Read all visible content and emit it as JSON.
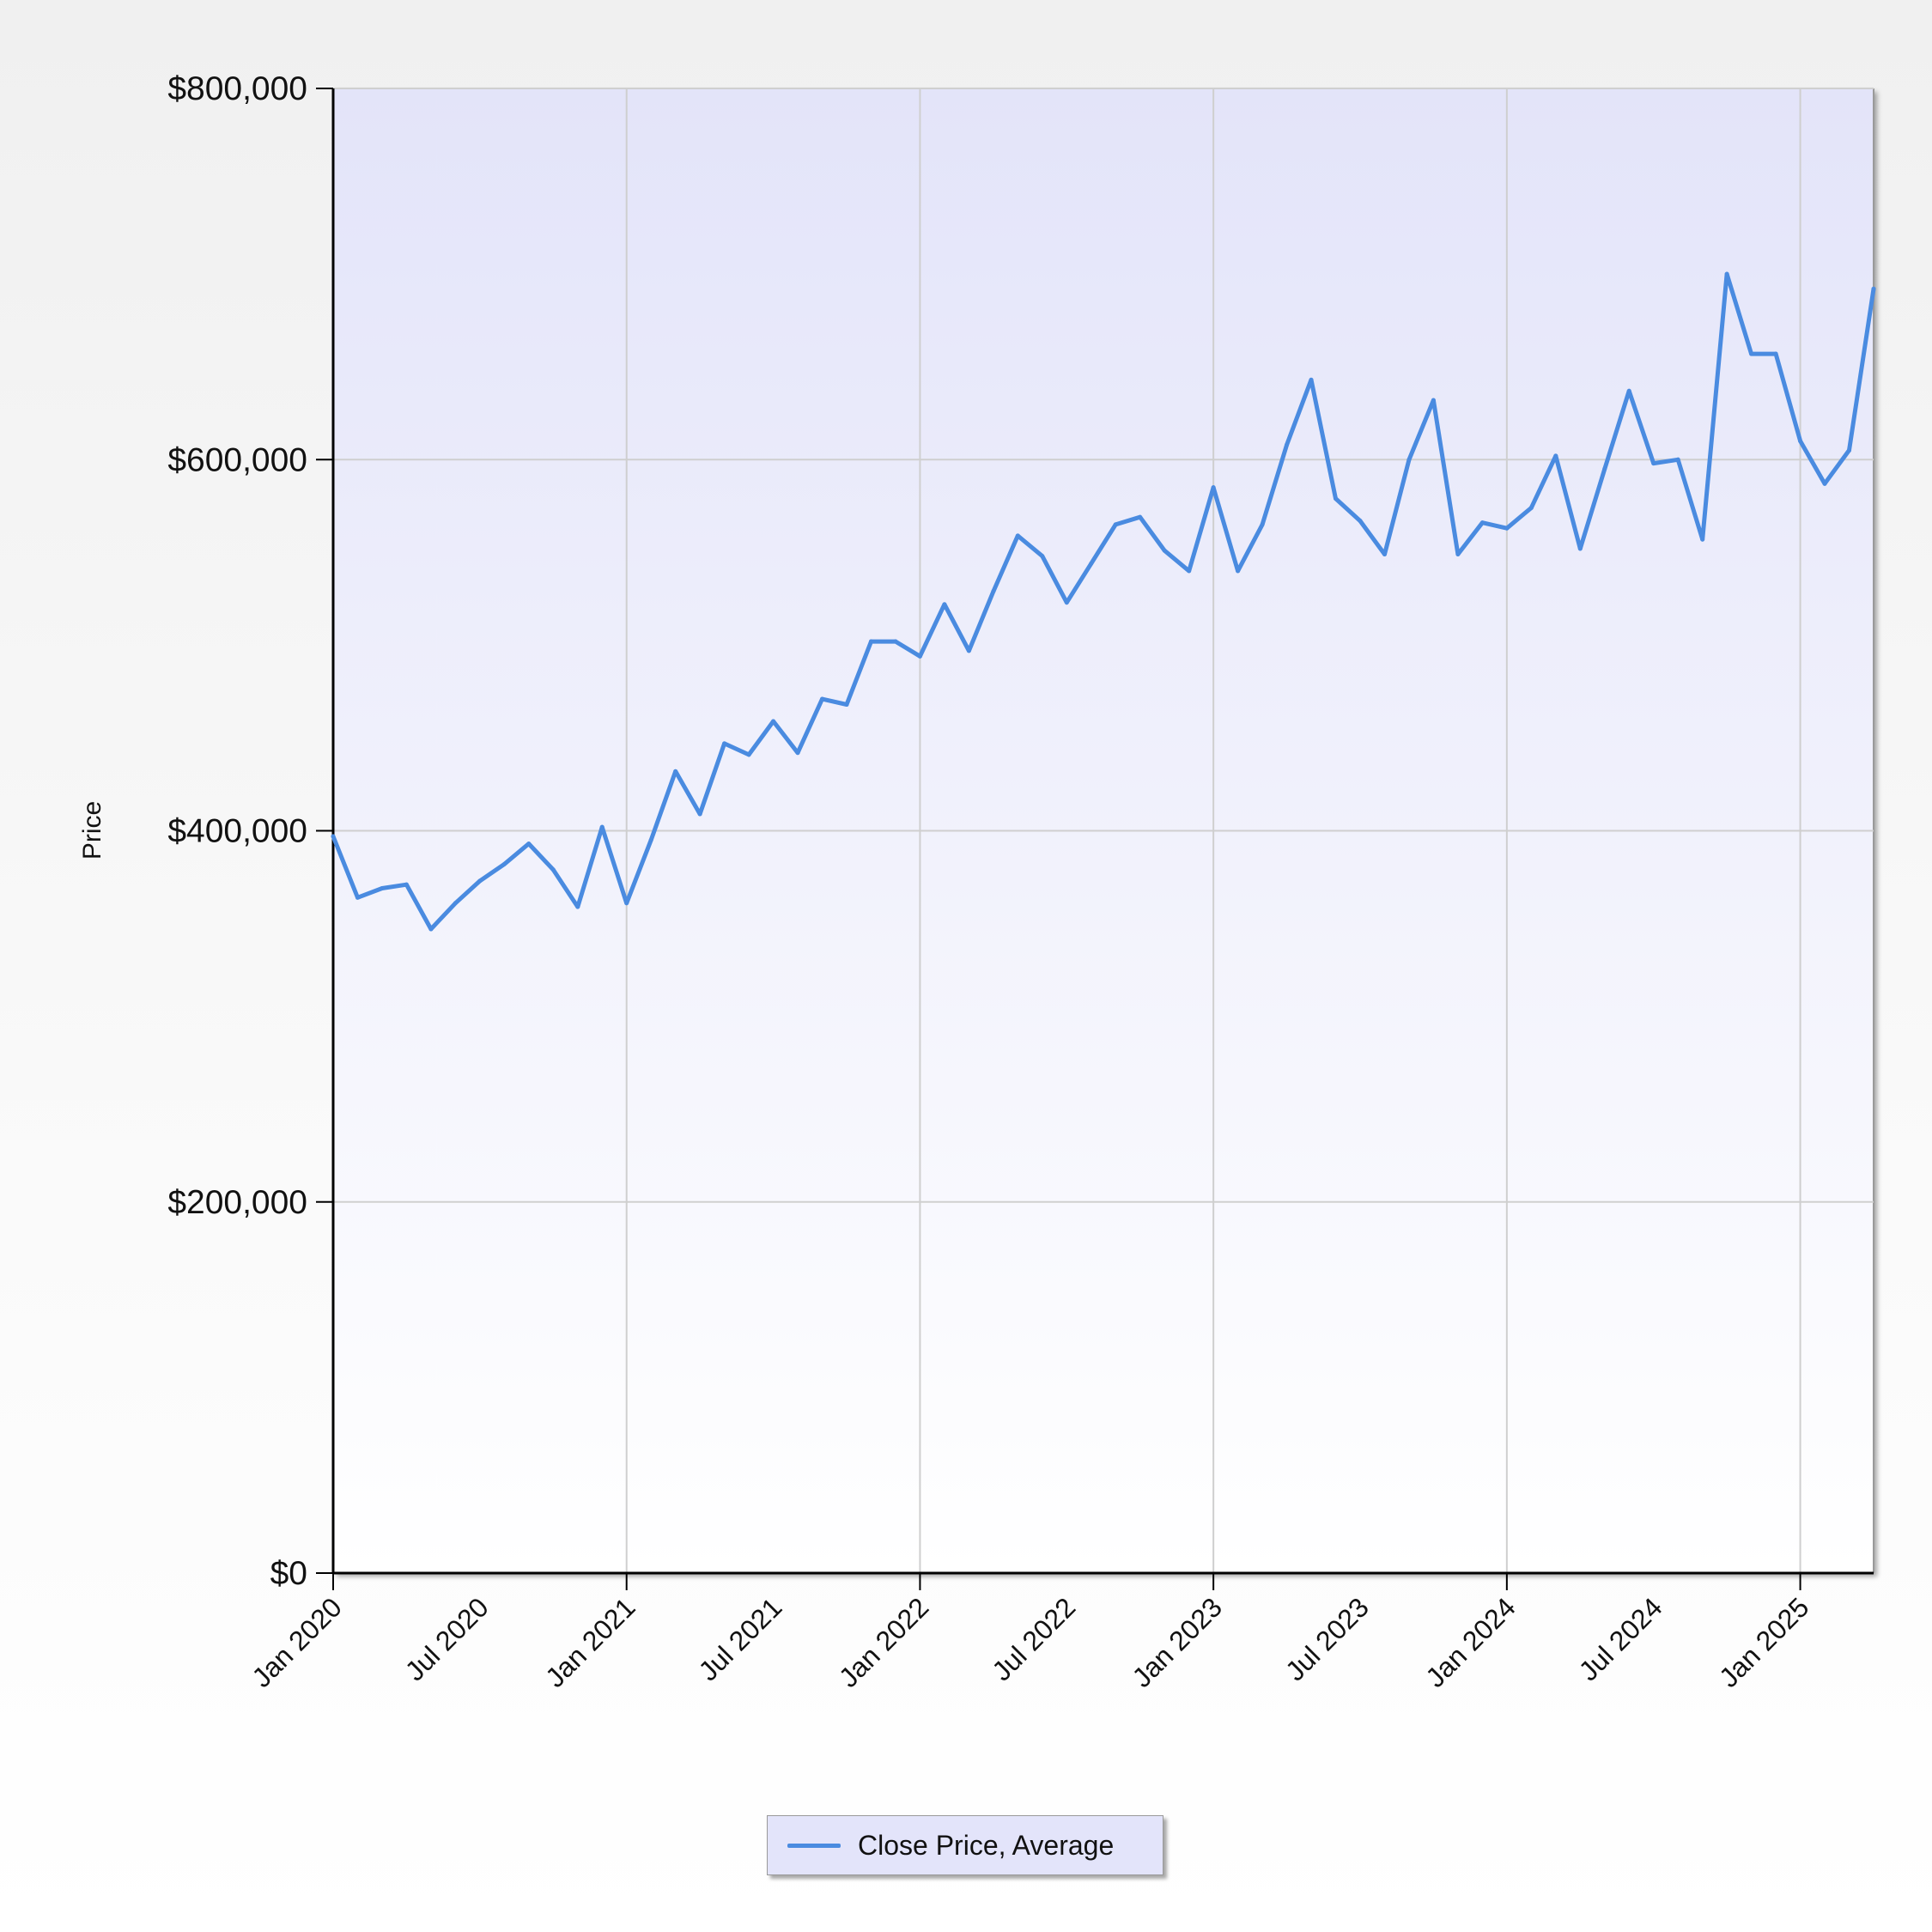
{
  "chart_data": {
    "type": "line",
    "ylabel": "Price",
    "xlabel": "",
    "ylim": [
      0,
      800000
    ],
    "y_ticks": [
      0,
      200000,
      400000,
      600000,
      800000
    ],
    "y_tick_labels": [
      "$0",
      "$200,000",
      "$400,000",
      "$600,000",
      "$800,000"
    ],
    "x_range": [
      "2020-01",
      "2025-04"
    ],
    "x_tick_labels": [
      "Jan 2020",
      "Jul 2020",
      "Jan 2021",
      "Jul 2021",
      "Jan 2022",
      "Jul 2022",
      "Jan 2023",
      "Jul 2023",
      "Jan 2024",
      "Jul 2024",
      "Jan 2025"
    ],
    "x_tick_dates": [
      "2020-01",
      "2020-07",
      "2021-01",
      "2021-07",
      "2022-01",
      "2022-07",
      "2023-01",
      "2023-07",
      "2024-01",
      "2024-07",
      "2025-01"
    ],
    "grid": true,
    "legend_position": "bottom-center",
    "colors": {
      "line": "#4a8be0",
      "plot_background_top": "#e3e4f9",
      "plot_background_bottom": "#ffffff",
      "grid": "#cfcfcf",
      "axis": "#000000",
      "legend_background": "#e3e4fa"
    },
    "series": [
      {
        "name": "Close Price, Average",
        "x": [
          "2020-01",
          "2020-02",
          "2020-03",
          "2020-04",
          "2020-05",
          "2020-06",
          "2020-07",
          "2020-08",
          "2020-09",
          "2020-10",
          "2020-11",
          "2020-12",
          "2021-01",
          "2021-02",
          "2021-03",
          "2021-04",
          "2021-05",
          "2021-06",
          "2021-07",
          "2021-08",
          "2021-09",
          "2021-10",
          "2021-11",
          "2021-12",
          "2022-01",
          "2022-02",
          "2022-03",
          "2022-04",
          "2022-05",
          "2022-06",
          "2022-07",
          "2022-08",
          "2022-09",
          "2022-10",
          "2022-11",
          "2022-12",
          "2023-01",
          "2023-02",
          "2023-03",
          "2023-04",
          "2023-05",
          "2023-06",
          "2023-07",
          "2023-08",
          "2023-09",
          "2023-10",
          "2023-11",
          "2023-12",
          "2024-01",
          "2024-02",
          "2024-03",
          "2024-04",
          "2024-05",
          "2024-06",
          "2024-07",
          "2024-08",
          "2024-09",
          "2024-10",
          "2024-11",
          "2024-12",
          "2025-01",
          "2025-02",
          "2025-03",
          "2025-04"
        ],
        "values": [
          397000,
          364000,
          369000,
          371000,
          347000,
          361000,
          373000,
          382000,
          393000,
          379000,
          359000,
          402000,
          361000,
          395000,
          432000,
          409000,
          447000,
          441000,
          459000,
          442000,
          471000,
          468000,
          502000,
          502000,
          494000,
          522000,
          497000,
          529000,
          559000,
          548000,
          523000,
          544000,
          565000,
          569000,
          551000,
          540000,
          585000,
          540000,
          565000,
          608000,
          643000,
          579000,
          567000,
          549000,
          600000,
          632000,
          549000,
          566000,
          563000,
          574000,
          602000,
          552000,
          595000,
          637000,
          598000,
          600000,
          557000,
          700000,
          657000,
          657000,
          610000,
          587000,
          605000,
          692000
        ]
      }
    ]
  }
}
